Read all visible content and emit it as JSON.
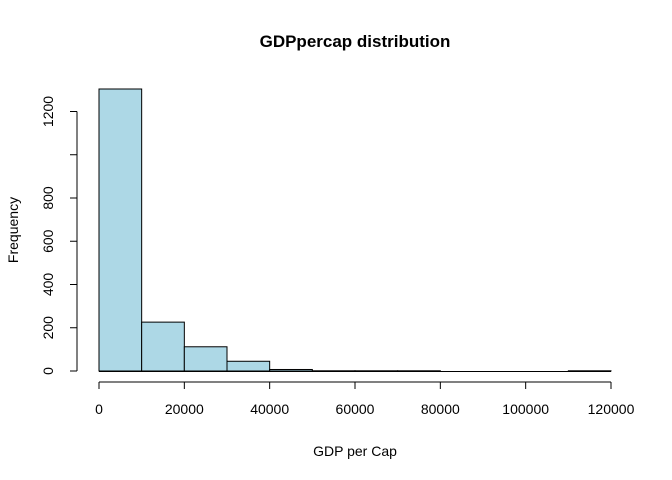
{
  "chart_data": {
    "type": "bar",
    "title": "GDPpercap distribution",
    "xlabel": "GDP per Cap",
    "ylabel": "Frequency",
    "bin_edges": [
      0,
      10000,
      20000,
      30000,
      40000,
      50000,
      60000,
      70000,
      80000,
      90000,
      100000,
      110000,
      120000
    ],
    "values": [
      1304,
      226,
      112,
      45,
      7,
      1,
      1,
      1,
      0,
      0,
      0,
      1
    ],
    "xlim": [
      0,
      120000
    ],
    "ylim": [
      0,
      1304
    ],
    "x_ticks": [
      0,
      20000,
      40000,
      60000,
      80000,
      100000,
      120000
    ],
    "y_ticks": [
      0,
      200,
      400,
      600,
      800,
      1000,
      1200
    ],
    "y_tick_labels": [
      "0",
      "200",
      "400",
      "600",
      "800",
      "",
      "1200"
    ],
    "bar_color": "#add8e6",
    "grid": false,
    "legend": "none"
  }
}
